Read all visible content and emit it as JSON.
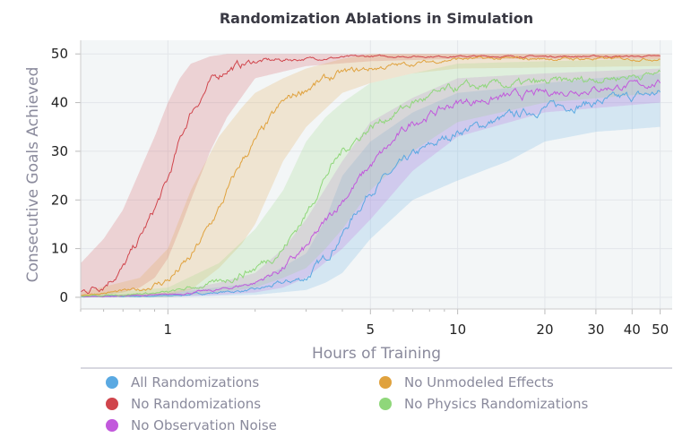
{
  "chart_data": {
    "type": "line",
    "title": "Randomization Ablations in Simulation",
    "xlabel": "Hours of Training",
    "ylabel": "Consecutive Goals Achieved",
    "xscale": "log",
    "xlim": [
      0.5,
      55
    ],
    "ylim": [
      -2.4,
      52.8
    ],
    "xticks": [
      1,
      5,
      10,
      20,
      30,
      40,
      50
    ],
    "xtick_labels": [
      "1",
      "5",
      "10",
      "20",
      "30",
      "40",
      "50"
    ],
    "yticks": [
      0,
      10,
      20,
      30,
      40,
      50
    ],
    "ytick_labels": [
      "0",
      "10",
      "20",
      "30",
      "40",
      "50"
    ],
    "grid": true,
    "legend_position": "bottom",
    "series": [
      {
        "name": "All Randomizations",
        "color": "#5aa9e2",
        "x": [
          0.5,
          1,
          2,
          3,
          3.5,
          4,
          5,
          7,
          10,
          15,
          20,
          30,
          50
        ],
        "y": [
          0.1,
          0.3,
          1.5,
          4,
          8,
          13,
          22,
          29,
          34,
          37,
          39,
          40,
          42
        ],
        "lo": [
          0,
          0,
          0.5,
          1.5,
          3,
          5,
          12,
          20,
          24,
          28,
          32,
          34,
          35
        ],
        "hi": [
          0.3,
          0.8,
          3,
          9,
          16,
          25,
          32,
          38,
          42,
          43,
          44,
          45,
          46
        ]
      },
      {
        "name": "No Randomizations",
        "color": "#d0454c",
        "x": [
          0.5,
          0.6,
          0.7,
          0.8,
          0.9,
          1.0,
          1.1,
          1.2,
          1.4,
          1.6,
          2,
          3,
          5,
          10,
          50
        ],
        "y": [
          1,
          2.8,
          6,
          12,
          18,
          24,
          32,
          38,
          44,
          47,
          48.5,
          49,
          49.5,
          49.5,
          49.5
        ],
        "lo": [
          0,
          0.5,
          1,
          2,
          4,
          8,
          14,
          20,
          30,
          37,
          45,
          47.5,
          48.5,
          49,
          49
        ],
        "hi": [
          7,
          12,
          18,
          26,
          33,
          40,
          45,
          48,
          49.5,
          50,
          50,
          50,
          50,
          50,
          50
        ]
      },
      {
        "name": "No Observation Noise",
        "color": "#c259dc",
        "x": [
          0.5,
          1,
          1.5,
          2,
          2.5,
          3,
          4,
          5,
          7,
          10,
          20,
          50
        ],
        "y": [
          0.1,
          0.5,
          1.5,
          3,
          6,
          10,
          20,
          27,
          36,
          40,
          42,
          44
        ],
        "lo": [
          0,
          0.1,
          0.5,
          1,
          2,
          4,
          10,
          16,
          26,
          33,
          38,
          40
        ],
        "hi": [
          0.3,
          1,
          3,
          5,
          10,
          16,
          28,
          36,
          41,
          45,
          46,
          47
        ]
      },
      {
        "name": "No Unmodeled Effects",
        "color": "#e0a23e",
        "x": [
          0.5,
          0.8,
          1.0,
          1.2,
          1.5,
          1.8,
          2,
          2.5,
          3,
          4,
          5,
          7,
          10,
          50
        ],
        "y": [
          0.5,
          1.5,
          3.5,
          8,
          18,
          28,
          32,
          40,
          43,
          46,
          47,
          48,
          49,
          49
        ],
        "lo": [
          0,
          0.3,
          0.5,
          1.5,
          6,
          11,
          15,
          28,
          35,
          42,
          44,
          46,
          47,
          47.5
        ],
        "hi": [
          1,
          4,
          10,
          22,
          33,
          39,
          42,
          45,
          47,
          49,
          50,
          50,
          50,
          50
        ]
      },
      {
        "name": "No Physics Randomizations",
        "color": "#8fd77a",
        "x": [
          0.5,
          1,
          1.5,
          2,
          2.5,
          3,
          3.5,
          4,
          5,
          7,
          10,
          20,
          50
        ],
        "y": [
          0.2,
          1,
          3,
          6,
          10,
          17,
          25,
          30,
          35,
          40,
          43,
          44,
          46
        ],
        "lo": [
          0,
          0,
          1,
          2,
          4,
          6,
          10,
          14,
          22,
          30,
          36,
          40,
          42
        ],
        "hi": [
          0.5,
          2,
          7,
          14,
          22,
          32,
          37,
          40,
          44,
          46,
          48,
          48.5,
          49
        ]
      }
    ]
  }
}
